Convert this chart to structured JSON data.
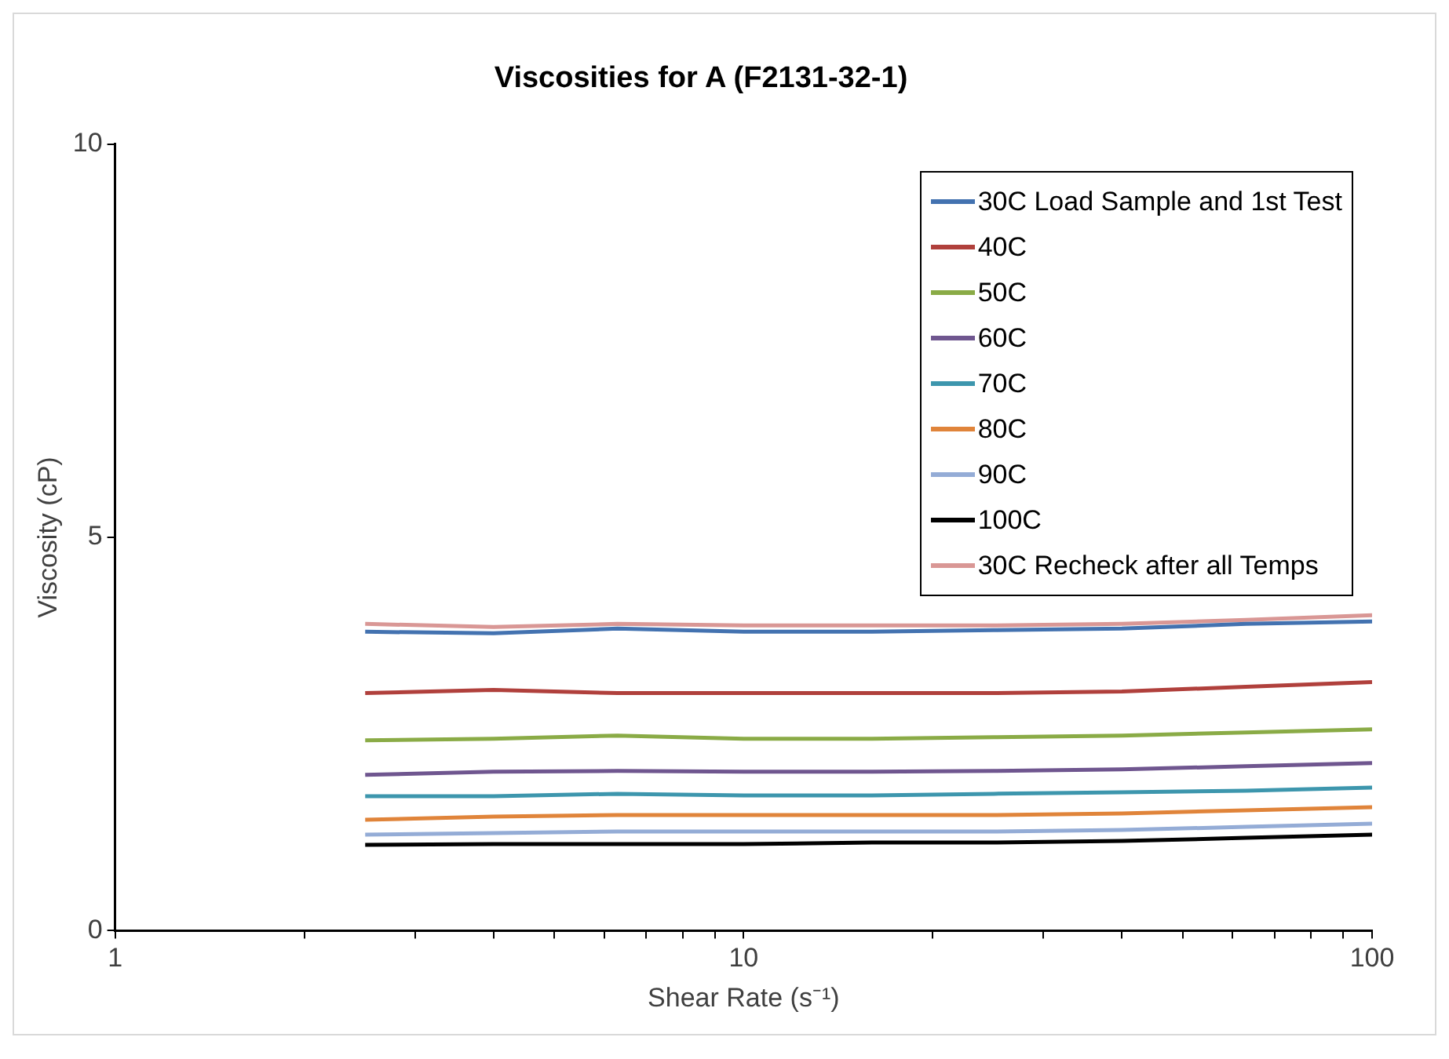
{
  "chart_data": {
    "type": "line",
    "title": "Viscosities for A (F2131-32-1)",
    "xlabel": "Shear Rate (s⁻¹)",
    "ylabel": "Viscosity (cP)",
    "x": [
      2.5,
      4,
      6.3,
      10,
      16,
      25,
      40,
      63,
      100
    ],
    "log": "x",
    "xlim": [
      1,
      100
    ],
    "xticks": [
      1,
      {
        "value": 2,
        "label": null
      },
      {
        "value": 3,
        "label": null
      },
      {
        "value": 4,
        "label": null
      },
      {
        "value": 5,
        "label": null
      },
      {
        "value": 6,
        "label": null
      },
      {
        "value": 7,
        "label": null
      },
      {
        "value": 8,
        "label": null
      },
      {
        "value": 9,
        "label": null
      },
      10,
      {
        "value": 20,
        "label": null
      },
      {
        "value": 30,
        "label": null
      },
      {
        "value": 40,
        "label": null
      },
      {
        "value": 50,
        "label": null
      },
      {
        "value": 60,
        "label": null
      },
      {
        "value": 70,
        "label": null
      },
      {
        "value": 80,
        "label": null
      },
      {
        "value": 90,
        "label": null
      },
      100
    ],
    "ylim": [
      0,
      10
    ],
    "yticks": [
      0,
      5,
      10
    ],
    "grid": false,
    "legend": "top right",
    "marker": "none",
    "line_style": "solid",
    "series": [
      {
        "name": "30C Load Sample and 1st Test",
        "color": "#4372b0",
        "values": [
          3.8,
          3.78,
          3.84,
          3.8,
          3.8,
          3.82,
          3.84,
          3.9,
          3.93
        ]
      },
      {
        "name": "40C",
        "color": "#b0403c",
        "values": [
          3.02,
          3.06,
          3.02,
          3.02,
          3.02,
          3.02,
          3.04,
          3.1,
          3.16
        ]
      },
      {
        "name": "50C",
        "color": "#8aab46",
        "values": [
          2.42,
          2.44,
          2.48,
          2.44,
          2.44,
          2.46,
          2.48,
          2.52,
          2.56
        ]
      },
      {
        "name": "60C",
        "color": "#6f568f",
        "values": [
          1.98,
          2.02,
          2.03,
          2.02,
          2.02,
          2.03,
          2.05,
          2.09,
          2.13
        ]
      },
      {
        "name": "70C",
        "color": "#3d96ad",
        "values": [
          1.71,
          1.71,
          1.74,
          1.72,
          1.72,
          1.74,
          1.76,
          1.78,
          1.82
        ]
      },
      {
        "name": "80C",
        "color": "#e0843a",
        "values": [
          1.41,
          1.45,
          1.47,
          1.47,
          1.47,
          1.47,
          1.49,
          1.53,
          1.57
        ]
      },
      {
        "name": "90C",
        "color": "#94acd6",
        "values": [
          1.22,
          1.24,
          1.26,
          1.26,
          1.26,
          1.26,
          1.28,
          1.32,
          1.36
        ]
      },
      {
        "name": "100C",
        "color": "#000000",
        "values": [
          1.09,
          1.1,
          1.1,
          1.1,
          1.12,
          1.12,
          1.14,
          1.18,
          1.22
        ]
      },
      {
        "name": "30C Recheck after all Temps",
        "color": "#d99795",
        "values": [
          3.9,
          3.86,
          3.9,
          3.88,
          3.88,
          3.88,
          3.9,
          3.95,
          4.01
        ]
      }
    ]
  }
}
